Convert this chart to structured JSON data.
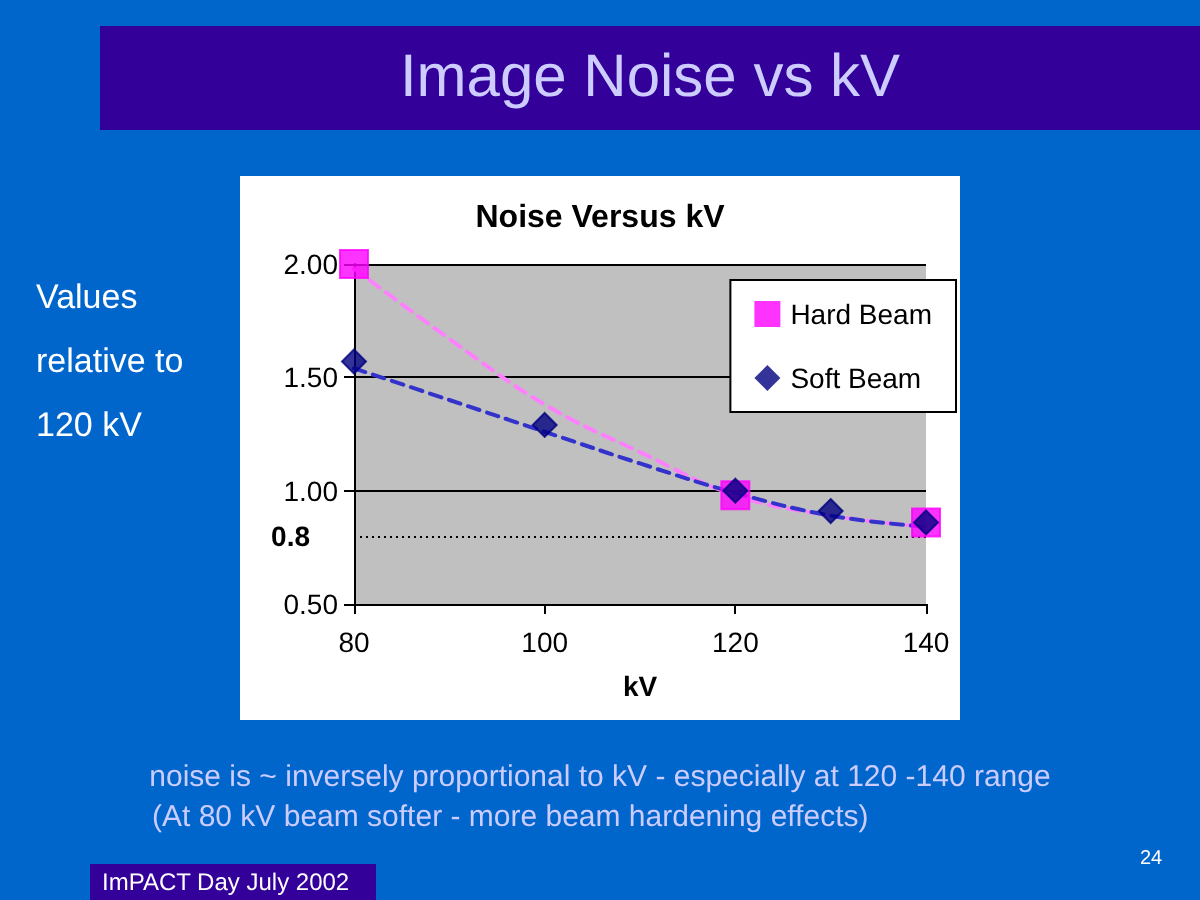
{
  "chart_data": {
    "type": "scatter",
    "title": "Image Noise vs kV",
    "subtitle": "Noise Versus kV",
    "xlabel": "kV",
    "ylabel": "Values relative to 120 kV",
    "xlim": [
      80,
      140
    ],
    "xticks": [
      80,
      100,
      120,
      140
    ],
    "ylim": [
      0.5,
      2
    ],
    "yticks": [
      {
        "value": 0.5,
        "label": "0.50"
      },
      {
        "value": 1,
        "label": "1.00"
      },
      {
        "value": 1.5,
        "label": "1.50"
      },
      {
        "value": 2,
        "label": "2.00"
      }
    ],
    "grid": "y",
    "legend": "top right",
    "series": [
      {
        "name": "Hard Beam",
        "color": "#ff00ff",
        "marker": "square",
        "x": [
          80,
          120,
          140
        ],
        "values": [
          2.0,
          0.98,
          0.86
        ]
      },
      {
        "name": "Soft Beam",
        "color": "#000080",
        "marker": "diamond",
        "x": [
          80,
          100,
          120,
          130,
          140
        ],
        "values": [
          1.57,
          1.29,
          1.0,
          0.91,
          0.86
        ]
      },
      {
        "type": "line",
        "color": "#ff80ff",
        "line_style": "dashed",
        "x": [
          80,
          90,
          100,
          110,
          120,
          130,
          140
        ],
        "values": [
          1.98,
          1.67,
          1.38,
          1.17,
          0.98,
          0.89,
          0.84
        ]
      },
      {
        "type": "line",
        "color": "#3333cc",
        "line_style": "dashed",
        "x": [
          80,
          90,
          100,
          110,
          120,
          130,
          140
        ],
        "values": [
          1.54,
          1.4,
          1.26,
          1.12,
          0.99,
          0.89,
          0.84
        ]
      }
    ],
    "ref_lines": [
      {
        "axis": "y",
        "value": 0.8,
        "label": "0.8",
        "color": "#000000",
        "line_style": "dotted"
      }
    ],
    "annotations": [
      "noise is ~ inversely proportional to kV - especially at 120 -140 range",
      "(At 80 kV beam softer - more beam hardening effects)",
      "ImPACT Day July 2002",
      "24"
    ]
  }
}
